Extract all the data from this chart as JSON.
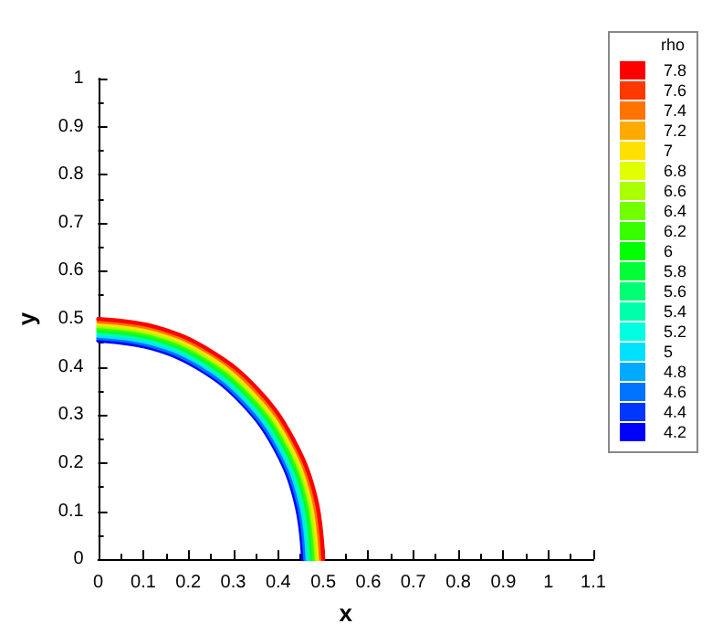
{
  "chart_data": {
    "type": "line",
    "xlabel": "x",
    "ylabel": "y",
    "clabel": "rho",
    "series": [
      {
        "color": "#0000ff",
        "x": [
          0.455,
          0.439,
          0.394,
          0.322,
          0.228,
          0.118,
          0
        ],
        "values": [
          0,
          0.118,
          0.228,
          0.322,
          0.394,
          0.439,
          0.455
        ]
      },
      {
        "color": "#0071ff",
        "x": [
          0.46,
          0.444,
          0.398,
          0.325,
          0.23,
          0.119,
          0
        ],
        "values": [
          0,
          0.119,
          0.23,
          0.325,
          0.398,
          0.444,
          0.46
        ]
      },
      {
        "color": "#00e3ff",
        "x": [
          0.465,
          0.449,
          0.403,
          0.329,
          0.233,
          0.12,
          0
        ],
        "values": [
          0,
          0.12,
          0.233,
          0.329,
          0.403,
          0.449,
          0.465
        ]
      },
      {
        "color": "#00ffaa",
        "x": [
          0.47,
          0.454,
          0.407,
          0.332,
          0.235,
          0.122,
          0
        ],
        "values": [
          0,
          0.122,
          0.235,
          0.332,
          0.407,
          0.454,
          0.47
        ]
      },
      {
        "color": "#00ff39",
        "x": [
          0.475,
          0.459,
          0.411,
          0.336,
          0.238,
          0.123,
          0
        ],
        "values": [
          0,
          0.123,
          0.238,
          0.336,
          0.411,
          0.459,
          0.475
        ]
      },
      {
        "color": "#39ff00",
        "x": [
          0.48,
          0.464,
          0.416,
          0.339,
          0.24,
          0.124,
          0
        ],
        "values": [
          0,
          0.124,
          0.24,
          0.339,
          0.416,
          0.464,
          0.48
        ]
      },
      {
        "color": "#aaff00",
        "x": [
          0.485,
          0.468,
          0.42,
          0.343,
          0.243,
          0.126,
          0
        ],
        "values": [
          0,
          0.126,
          0.243,
          0.343,
          0.42,
          0.468,
          0.485
        ]
      },
      {
        "color": "#ffe300",
        "x": [
          0.49,
          0.473,
          0.424,
          0.346,
          0.245,
          0.127,
          0
        ],
        "values": [
          0,
          0.127,
          0.245,
          0.346,
          0.424,
          0.473,
          0.49
        ]
      },
      {
        "color": "#ff7100",
        "x": [
          0.495,
          0.478,
          0.429,
          0.35,
          0.248,
          0.128,
          0
        ],
        "values": [
          0,
          0.128,
          0.248,
          0.35,
          0.429,
          0.478,
          0.495
        ]
      },
      {
        "color": "#ff0000",
        "x": [
          0.5,
          0.483,
          0.433,
          0.354,
          0.25,
          0.129,
          0
        ],
        "values": [
          0,
          0.129,
          0.25,
          0.354,
          0.433,
          0.483,
          0.5
        ]
      }
    ],
    "clim": [
      4.2,
      7.8
    ],
    "cticks": [
      4.2,
      4.4,
      4.6,
      4.8,
      5,
      5.2,
      5.4,
      5.6,
      5.8,
      6,
      6.2,
      6.4,
      6.6,
      6.8,
      7,
      7.2,
      7.4,
      7.6,
      7.8
    ],
    "xlim": [
      0,
      1.1
    ],
    "xticks": [
      0,
      0.1,
      0.2,
      0.3,
      0.4,
      0.5,
      0.6,
      0.7,
      0.8,
      0.9,
      1,
      1.1
    ],
    "ylim": [
      0,
      1
    ],
    "yticks": [
      0,
      0.1,
      0.2,
      0.3,
      0.4,
      0.5,
      0.6,
      0.7,
      0.8,
      0.9,
      1
    ],
    "grid": false,
    "marker": "none",
    "line_style": "solid"
  }
}
